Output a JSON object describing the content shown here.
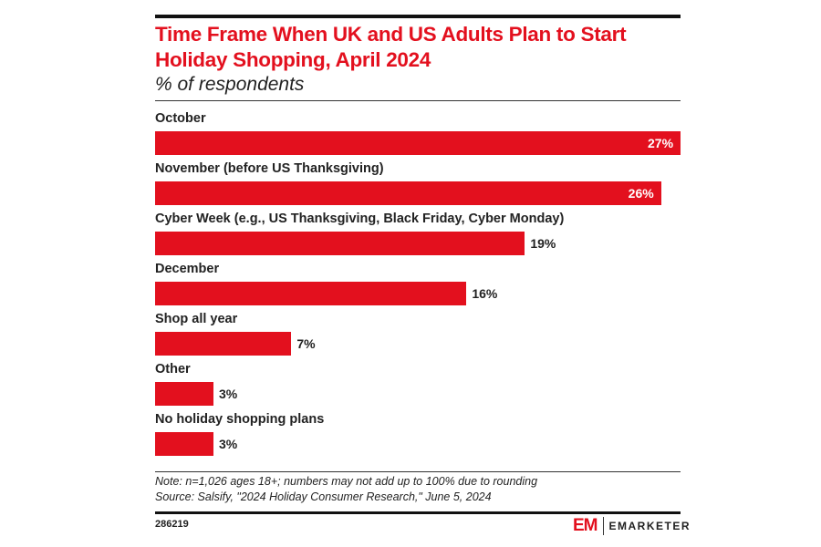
{
  "chart_data": {
    "type": "bar",
    "orientation": "horizontal",
    "title": "Time Frame When UK and US Adults Plan to Start Holiday Shopping, April 2024",
    "subtitle": "% of respondents",
    "categories": [
      "October",
      "November (before US Thanksgiving)",
      "Cyber Week (e.g., US Thanksgiving, Black Friday, Cyber Monday)",
      "December",
      "Shop all year",
      "Other",
      "No holiday shopping plans"
    ],
    "values": [
      27,
      26,
      19,
      16,
      7,
      3,
      3
    ],
    "value_labels": [
      "27%",
      "26%",
      "19%",
      "16%",
      "7%",
      "3%",
      "3%"
    ],
    "xlim": [
      0,
      27
    ],
    "grid": false,
    "bar_color": "#e3101e"
  },
  "footer": {
    "note": "Note: n=1,026 ages 18+; numbers may not add up to 100% due to rounding",
    "source": "Source: Salsify, \"2024 Holiday Consumer Research,\" June 5, 2024",
    "chart_id": "286219",
    "logo_mark": "EM",
    "logo_text": "EMARKETER"
  }
}
